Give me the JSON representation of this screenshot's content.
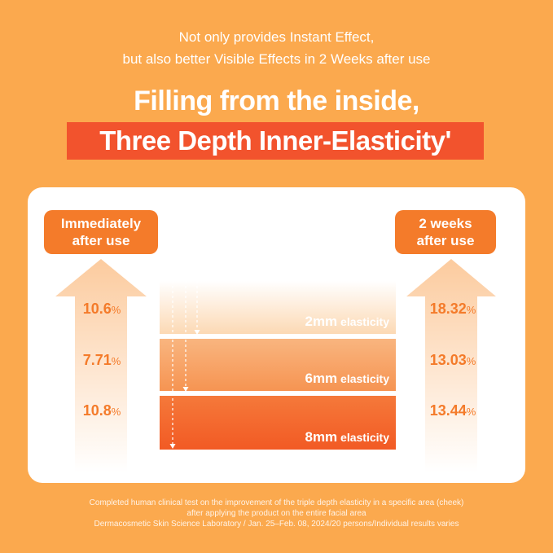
{
  "intro": {
    "line1": "Not only provides Instant Effect,",
    "line2": "but also better Visible Effects in 2 Weeks after use"
  },
  "headline": {
    "line1": "Filling from the inside,",
    "line2": "Three Depth Inner-Elasticity'"
  },
  "left_label": {
    "line1": "Immediately",
    "line2": "after use"
  },
  "right_label": {
    "line1": "2 weeks",
    "line2": "after use"
  },
  "rows": [
    {
      "left_value": "10.6",
      "left_unit": "%",
      "right_value": "18.32",
      "right_unit": "%",
      "depth": "2mm",
      "depth_suffix": " elasticity"
    },
    {
      "left_value": "7.71",
      "left_unit": "%",
      "right_value": "13.03",
      "right_unit": "%",
      "depth": "6mm",
      "depth_suffix": " elasticity"
    },
    {
      "left_value": "10.8",
      "left_unit": "%",
      "right_value": "13.44",
      "right_unit": "%",
      "depth": "8mm",
      "depth_suffix": " elasticity"
    }
  ],
  "footnote": {
    "line1": "Completed human clinical test on the improvement of the triple depth elasticity in a specific area (cheek)",
    "line2": "after applying the product on the entire facial area",
    "line3": "Dermacosmetic Skin Science Laboratory / Jan. 25–Feb. 08, 2024/20 persons/Individual results varies"
  },
  "colors": {
    "background": "#FBA94E",
    "accent": "#F47B2A",
    "headline_box": "#F2532D",
    "band_light": "#FCD9B4",
    "band_mid": "#F8A265",
    "band_dark": "#F26A2D"
  }
}
